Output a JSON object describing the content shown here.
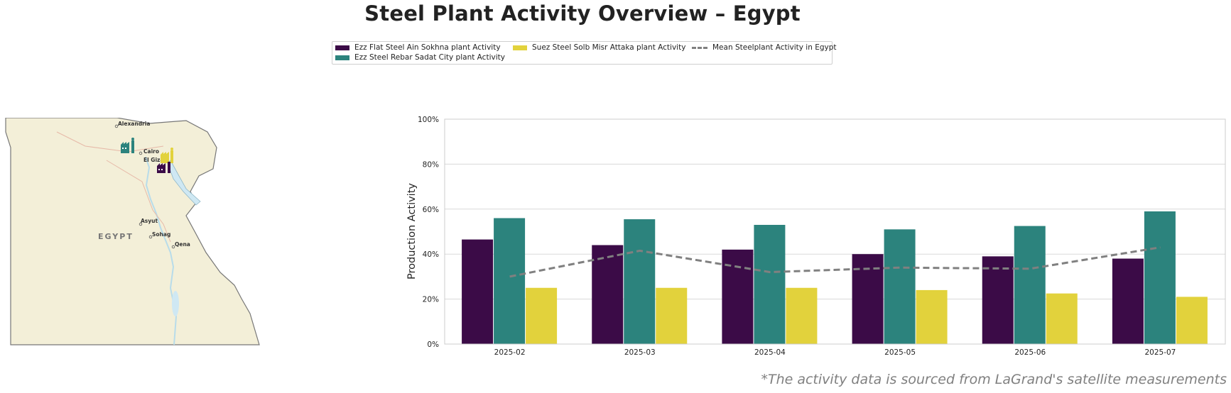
{
  "title": "Steel Plant Activity Overview – Egypt",
  "footnote": "*The activity data is sourced from LaGrand's satellite measurements",
  "colors": {
    "ain_sokhna": "#3b0b47",
    "sadat_city": "#2c837d",
    "attaka": "#e2d23c",
    "mean": "#808080",
    "grid": "#d9d9d9",
    "map_land": "#f3efd8",
    "map_water": "#cfe8f3"
  },
  "map": {
    "country_label": "EGYPT",
    "cities": [
      "Alexandria",
      "Cairo",
      "El Giza",
      "Asyut",
      "Sohag",
      "Qena"
    ],
    "markers": [
      {
        "name": "factory-icon-sadat-city",
        "color": "#2c837d"
      },
      {
        "name": "factory-icon-attaka",
        "color": "#e2d23c"
      },
      {
        "name": "factory-icon-ain-sokhna",
        "color": "#3b0b47"
      }
    ]
  },
  "chart_data": {
    "type": "bar",
    "title": "",
    "xlabel": "",
    "ylabel": "Production Activity",
    "ylim": [
      0,
      100
    ],
    "y_ticks": [
      "0%",
      "20%",
      "40%",
      "60%",
      "80%",
      "100%"
    ],
    "grid": true,
    "legend_position": "top-center",
    "categories": [
      "2025-02",
      "2025-03",
      "2025-04",
      "2025-05",
      "2025-06",
      "2025-07"
    ],
    "series": [
      {
        "name": "Ezz Flat Steel Ain Sokhna plant Activity",
        "type": "bar",
        "values": [
          46.5,
          44,
          42,
          40,
          39,
          38
        ]
      },
      {
        "name": "Ezz Steel Rebar Sadat City plant Activity",
        "type": "bar",
        "values": [
          56,
          55.5,
          53,
          51,
          52.5,
          59
        ]
      },
      {
        "name": "Suez Steel Solb Misr Attaka plant Activity",
        "type": "bar",
        "values": [
          25,
          25,
          25,
          24,
          22.5,
          21
        ]
      },
      {
        "name": "Mean Steelplant Activity in Egypt",
        "type": "line",
        "values": [
          30,
          41.5,
          32,
          34,
          33.5,
          43
        ]
      }
    ]
  }
}
